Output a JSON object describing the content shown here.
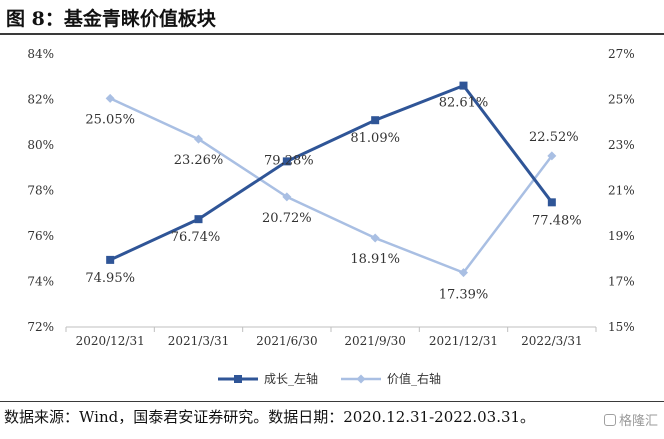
{
  "header": {
    "title": "图 8：基金青睐价值板块"
  },
  "footer": {
    "source": "数据来源：Wind，国泰君安证券研究。数据日期：2020.12.31-2022.03.31。",
    "watermark": "格隆汇"
  },
  "chart_data": {
    "type": "line",
    "title": "图 8：基金青睐价值板块",
    "categories": [
      "2020/12/31",
      "2021/3/31",
      "2021/6/30",
      "2021/9/30",
      "2021/12/31",
      "2022/3/31"
    ],
    "series": [
      {
        "name": "成长_左轴",
        "axis": "left",
        "color": "#2f5597",
        "marker": "square",
        "values": [
          74.95,
          76.74,
          79.28,
          81.09,
          82.61,
          77.48
        ],
        "labels": [
          "74.95%",
          "76.74%",
          "79.28%",
          "81.09%",
          "82.61%",
          "77.48%"
        ]
      },
      {
        "name": "价值_右轴",
        "axis": "right",
        "color": "#a9bfe3",
        "marker": "diamond",
        "values": [
          25.05,
          23.26,
          20.72,
          18.91,
          17.39,
          22.52
        ],
        "labels": [
          "25.05%",
          "23.26%",
          "20.72%",
          "18.91%",
          "17.39%",
          "22.52%"
        ]
      }
    ],
    "yaxis_left": {
      "range": [
        72,
        84
      ],
      "ticks": [
        "72%",
        "74%",
        "76%",
        "78%",
        "80%",
        "82%",
        "84%"
      ]
    },
    "yaxis_right": {
      "range": [
        15,
        27
      ],
      "ticks": [
        "15%",
        "17%",
        "19%",
        "21%",
        "23%",
        "25%",
        "27%"
      ]
    },
    "grid": false,
    "legend_position": "bottom"
  }
}
